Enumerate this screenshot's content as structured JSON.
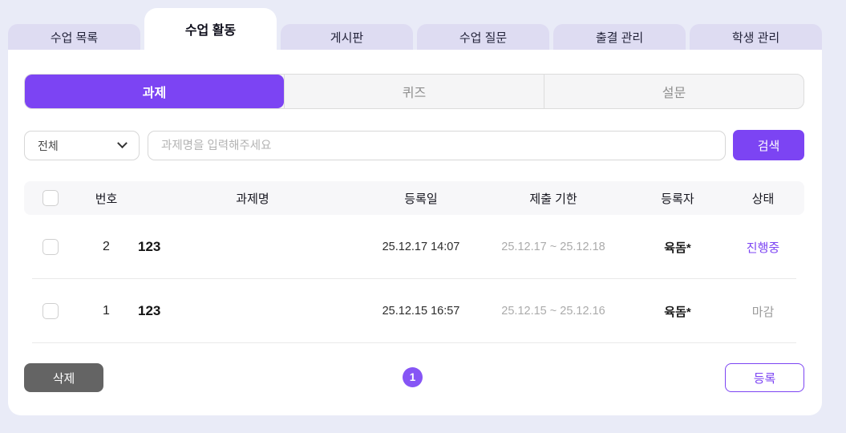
{
  "colors": {
    "accent": "#7c44f3",
    "page_background": "#e9ebf7",
    "inactive_tab_background": "#dedcf2",
    "delete_button_background": "#646464",
    "status_in_progress": "#7c44f3",
    "status_closed": "#9b9b9b"
  },
  "tabs": {
    "items": [
      {
        "label": "수업 목록"
      },
      {
        "label": "수업 활동"
      },
      {
        "label": "게시판"
      },
      {
        "label": "수업 질문"
      },
      {
        "label": "출결 관리"
      },
      {
        "label": "학생 관리"
      }
    ],
    "active": "수업 활동"
  },
  "subtabs": {
    "items": [
      {
        "label": "과제"
      },
      {
        "label": "퀴즈"
      },
      {
        "label": "설문"
      }
    ],
    "active": "과제"
  },
  "filter": {
    "category_dropdown": {
      "value": "전체"
    },
    "search_input": {
      "placeholder": "과제명을 입력해주세요"
    },
    "search_button": "검색"
  },
  "table": {
    "headers": {
      "number": "번호",
      "title": "과제명",
      "registered_date": "등록일",
      "deadline": "제출 기한",
      "registrant": "등록자",
      "status": "상태"
    },
    "rows": [
      {
        "number": "2",
        "title": "123",
        "registered_date": "25.12.17 14:07",
        "deadline": "25.12.17 ~ 25.12.18",
        "registrant": "육돔*",
        "status": "진행중"
      },
      {
        "number": "1",
        "title": "123",
        "registered_date": "25.12.15 16:57",
        "deadline": "25.12.15 ~ 25.12.16",
        "registrant": "육돔*",
        "status": "마감"
      }
    ]
  },
  "pagination": {
    "current_page": "1"
  },
  "actions": {
    "delete_button": "삭제",
    "register_button": "등록"
  }
}
